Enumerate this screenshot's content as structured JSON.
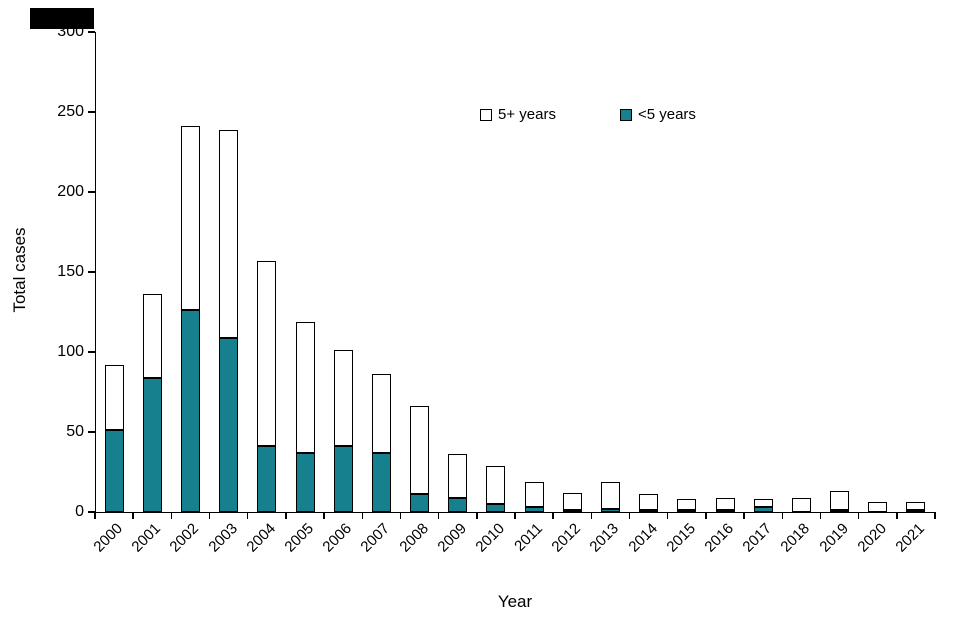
{
  "chart": {
    "y_axis_title": "Total cases",
    "x_axis_title": "Year",
    "accent_color": "#17808F",
    "axis_color": "#000000",
    "legend": {
      "over5_label": "5+ years",
      "under5_label": "<5 years"
    }
  },
  "chart_data": {
    "type": "bar",
    "stacked": true,
    "title": "",
    "xlabel": "Year",
    "ylabel": "Total cases",
    "ylim": [
      0,
      300
    ],
    "yticks": [
      0,
      50,
      100,
      150,
      200,
      250,
      300
    ],
    "grid": false,
    "legend_position": "top-center-inside",
    "categories": [
      "2000",
      "2001",
      "2002",
      "2003",
      "2004",
      "2005",
      "2006",
      "2007",
      "2008",
      "2009",
      "2010",
      "2011",
      "2012",
      "2013",
      "2014",
      "2015",
      "2016",
      "2017",
      "2018",
      "2019",
      "2020",
      "2021"
    ],
    "series": [
      {
        "name": "<5 years",
        "color": "#17808F",
        "values": [
          51,
          84,
          126,
          109,
          41,
          37,
          41,
          37,
          11,
          9,
          5,
          3,
          1,
          2,
          1,
          1,
          1,
          3,
          0,
          1,
          0,
          1
        ]
      },
      {
        "name": "5+ years",
        "color": "#FFFFFF",
        "values": [
          41,
          52,
          115,
          130,
          116,
          82,
          60,
          49,
          55,
          27,
          24,
          16,
          11,
          17,
          10,
          7,
          8,
          5,
          9,
          12,
          6,
          5
        ]
      }
    ],
    "totals": [
      92,
      136,
      241,
      239,
      157,
      119,
      101,
      86,
      66,
      36,
      29,
      19,
      12,
      19,
      11,
      8,
      9,
      8,
      9,
      13,
      6,
      6
    ]
  }
}
